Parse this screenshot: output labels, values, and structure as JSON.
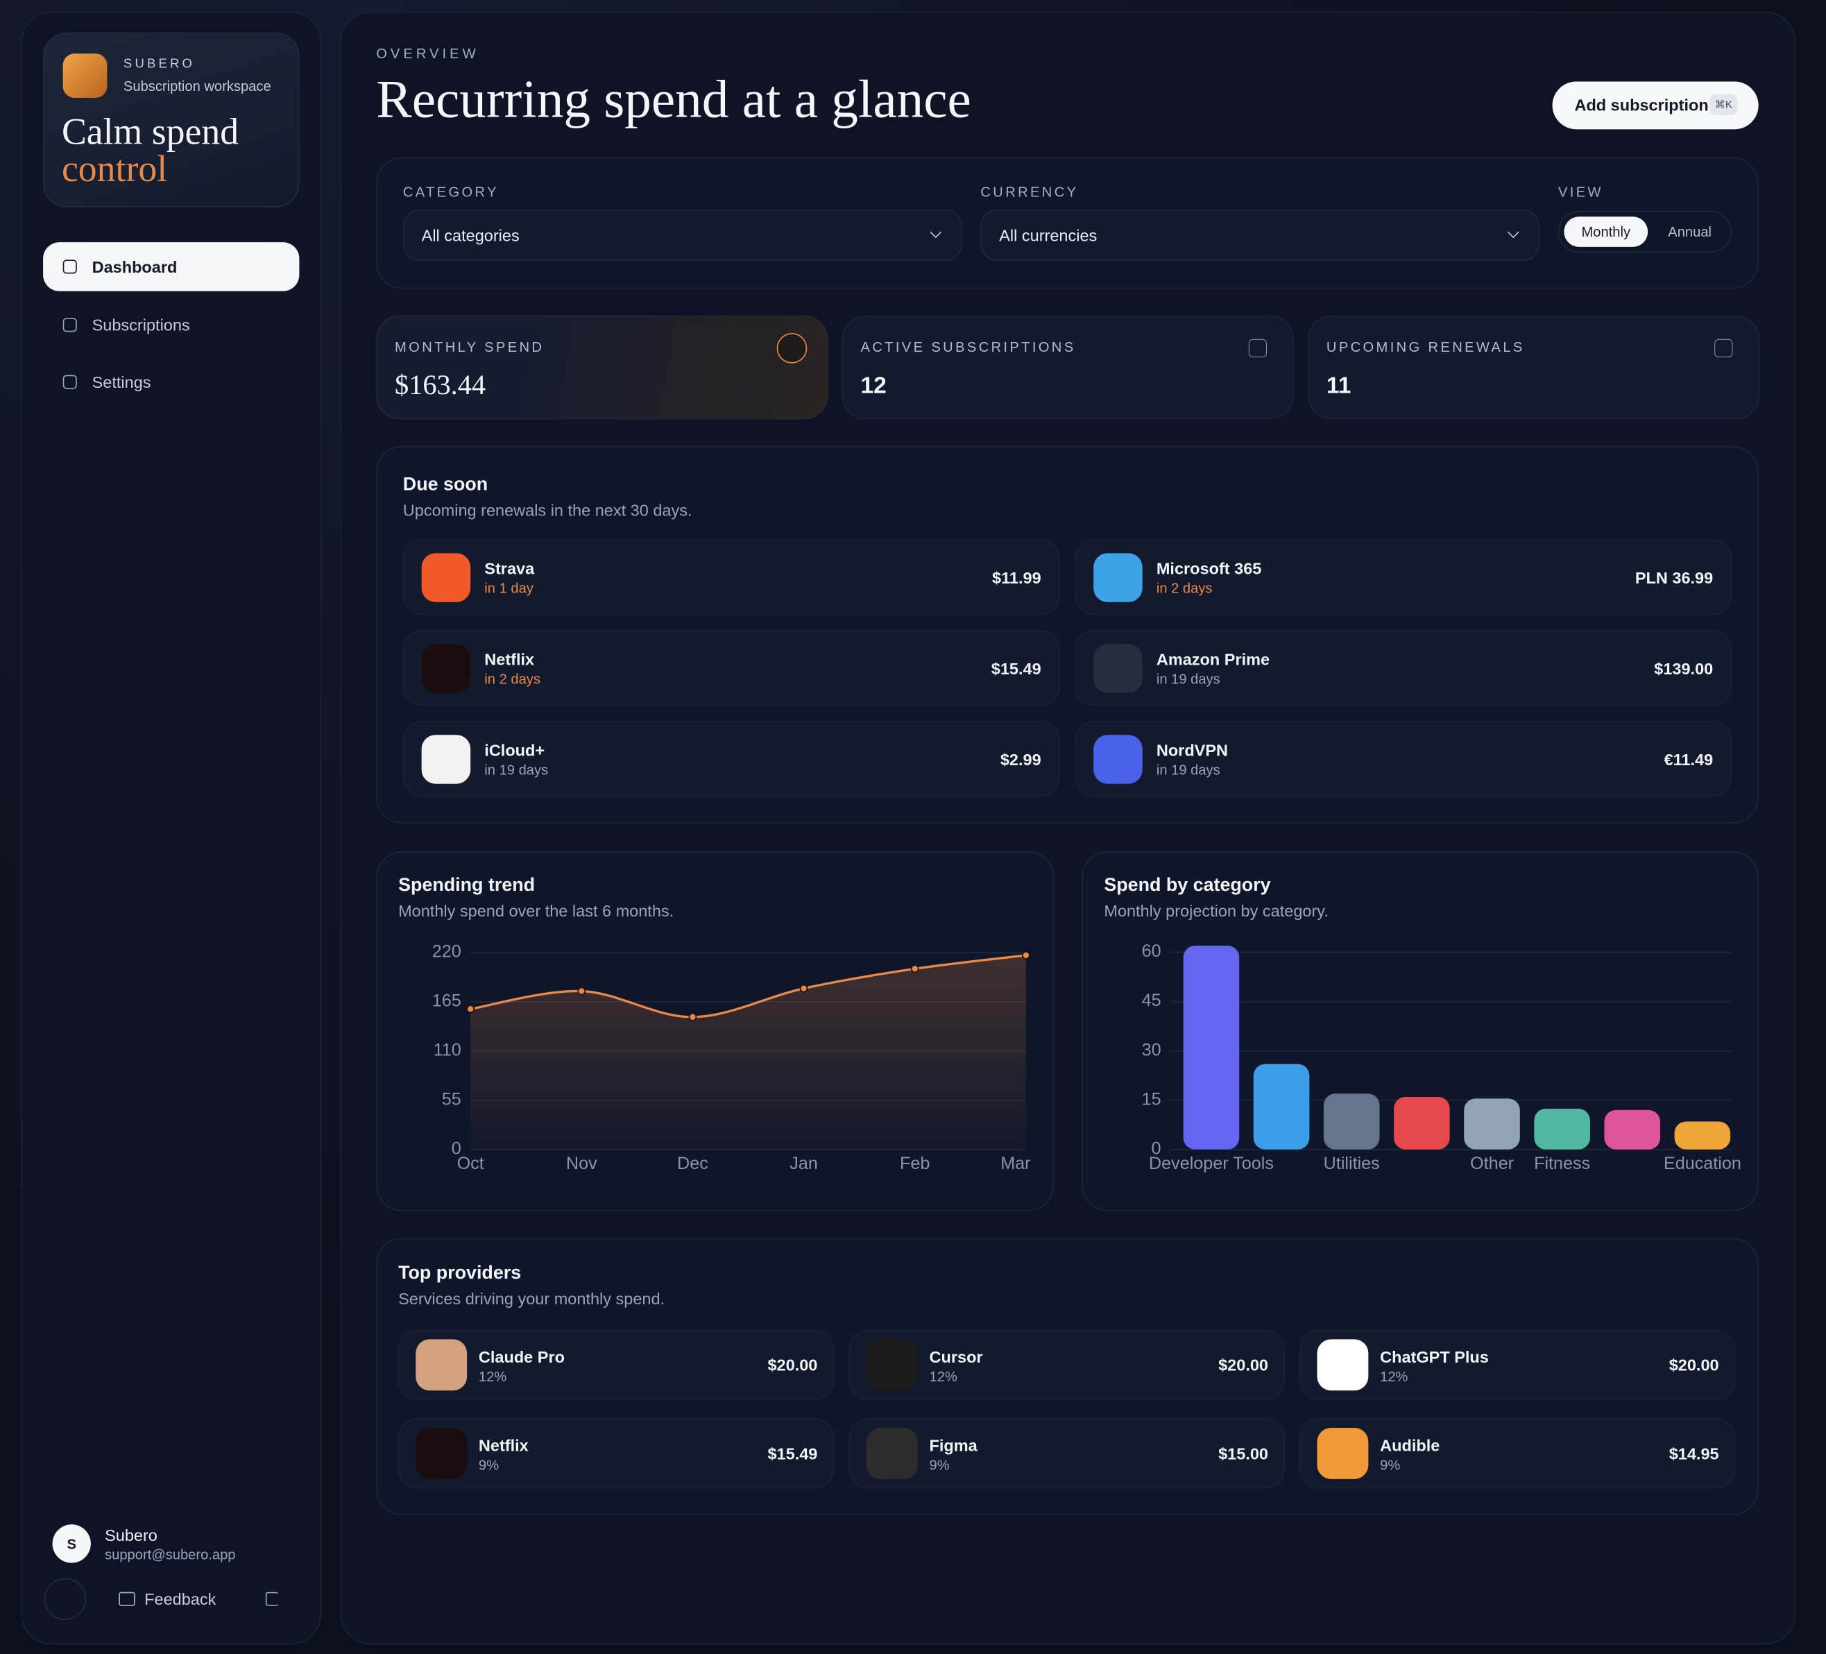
{
  "sidebar": {
    "brand": "SUBERO",
    "workspace": "Subscription workspace",
    "headline": [
      "Calm spend",
      "control"
    ],
    "nav": [
      "Dashboard",
      "Subscriptions",
      "Settings"
    ],
    "user": {
      "initial": "S",
      "name": "Subero",
      "email": "support@subero.app"
    },
    "feedback": "Feedback"
  },
  "header": {
    "eyebrow": "OVERVIEW",
    "title": "Recurring spend at a glance",
    "button": "Add subscription",
    "shortcut": "⌘K"
  },
  "filters": {
    "category_label": "CATEGORY",
    "category": "All categories",
    "currency_label": "CURRENCY",
    "currency": "All currencies",
    "view_label": "VIEW",
    "views": [
      "Monthly",
      "Annual"
    ]
  },
  "stats": [
    {
      "label": "MONTHLY SPEND",
      "value": "$163.44"
    },
    {
      "label": "ACTIVE SUBSCRIPTIONS",
      "value": "12"
    },
    {
      "label": "UPCOMING RENEWALS",
      "value": "11"
    }
  ],
  "due_soon": {
    "title": "Due soon",
    "subtitle": "Upcoming renewals in the next 30 days.",
    "items": [
      {
        "name": "Strava",
        "when": "in 1 day",
        "amount": "$11.99",
        "urgent": true,
        "color": "#f05a28"
      },
      {
        "name": "Microsoft 365",
        "when": "in 2 days",
        "amount": "PLN 36.99",
        "urgent": true,
        "color": "#3ba3e6"
      },
      {
        "name": "Netflix",
        "when": "in 2 days",
        "amount": "$15.49",
        "urgent": true,
        "color": "#1a0d0d"
      },
      {
        "name": "Amazon Prime",
        "when": "in 19 days",
        "amount": "$139.00",
        "urgent": false,
        "color": "#232f3e"
      },
      {
        "name": "iCloud+",
        "when": "in 19 days",
        "amount": "$2.99",
        "urgent": false,
        "color": "#f2f2f2"
      },
      {
        "name": "NordVPN",
        "when": "in 19 days",
        "amount": "€11.49",
        "urgent": false,
        "color": "#4a62e8"
      }
    ]
  },
  "chart_data": [
    {
      "type": "line",
      "title": "Spending trend",
      "subtitle": "Monthly spend over the last 6 months.",
      "categories": [
        "Oct",
        "Nov",
        "Dec",
        "Jan",
        "Feb",
        "Mar"
      ],
      "values": [
        157,
        177,
        148,
        180,
        202,
        217
      ],
      "ylim": [
        0,
        220
      ],
      "yticks": [
        0,
        55,
        110,
        165,
        220
      ],
      "grid": true,
      "color": "#e8894a"
    },
    {
      "type": "bar",
      "title": "Spend by category",
      "subtitle": "Monthly projection by category.",
      "categories": [
        "Developer Tools",
        null,
        "Utilities",
        null,
        "Other",
        "Fitness",
        null,
        "Education"
      ],
      "values": [
        62,
        26,
        17,
        16,
        15.5,
        12.4,
        12,
        8.5
      ],
      "colors": [
        "#6366f1",
        "#3b9ee8",
        "#64748b",
        "#e5484d",
        "#94a3b8",
        "#4fb8a0",
        "#e0559a",
        "#f0a53a"
      ],
      "ylim": [
        0,
        62
      ],
      "yticks": [
        0,
        15,
        30,
        45,
        60
      ],
      "grid": true
    }
  ],
  "top_providers": {
    "title": "Top providers",
    "subtitle": "Services driving your monthly spend.",
    "items": [
      {
        "name": "Claude Pro",
        "share": "12%",
        "amount": "$20.00",
        "color": "#d4a27f"
      },
      {
        "name": "Cursor",
        "share": "12%",
        "amount": "$20.00",
        "color": "#1b1b1b"
      },
      {
        "name": "ChatGPT Plus",
        "share": "12%",
        "amount": "$20.00",
        "color": "#ffffff"
      },
      {
        "name": "Netflix",
        "share": "9%",
        "amount": "$15.49",
        "color": "#1a0d0d"
      },
      {
        "name": "Figma",
        "share": "9%",
        "amount": "$15.00",
        "color": "#2c2c2c"
      },
      {
        "name": "Audible",
        "share": "9%",
        "amount": "$14.95",
        "color": "#f29a38"
      }
    ]
  }
}
